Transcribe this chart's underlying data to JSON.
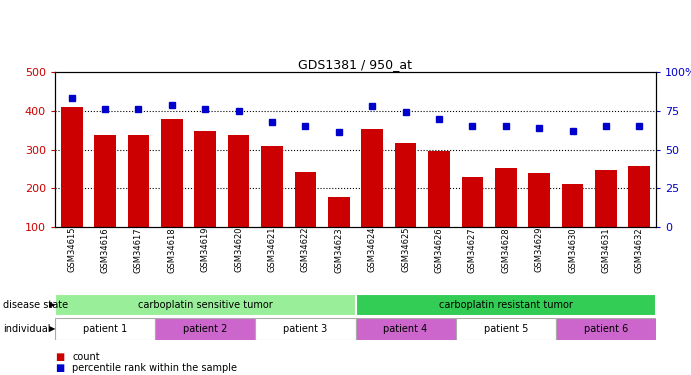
{
  "title": "GDS1381 / 950_at",
  "samples": [
    "GSM34615",
    "GSM34616",
    "GSM34617",
    "GSM34618",
    "GSM34619",
    "GSM34620",
    "GSM34621",
    "GSM34622",
    "GSM34623",
    "GSM34624",
    "GSM34625",
    "GSM34626",
    "GSM34627",
    "GSM34628",
    "GSM34629",
    "GSM34630",
    "GSM34631",
    "GSM34632"
  ],
  "counts": [
    410,
    338,
    338,
    380,
    347,
    338,
    308,
    242,
    178,
    353,
    318,
    295,
    228,
    253,
    240,
    210,
    247,
    257
  ],
  "percentiles": [
    83,
    76,
    76,
    79,
    76,
    75,
    68,
    65,
    61,
    78,
    74,
    70,
    65,
    65,
    64,
    62,
    65,
    65
  ],
  "ylim_left": [
    100,
    500
  ],
  "ylim_right": [
    0,
    100
  ],
  "yticks_left": [
    100,
    200,
    300,
    400,
    500
  ],
  "yticks_right": [
    0,
    25,
    50,
    75,
    100
  ],
  "bar_color": "#cc0000",
  "dot_color": "#0000cc",
  "disease_state_groups": [
    {
      "label": "carboplatin sensitive tumor",
      "start": 0,
      "end": 9,
      "color": "#99ee99"
    },
    {
      "label": "carboplatin resistant tumor",
      "start": 9,
      "end": 18,
      "color": "#33cc55"
    }
  ],
  "individual_groups": [
    {
      "label": "patient 1",
      "start": 0,
      "end": 3,
      "color": "#ffffff"
    },
    {
      "label": "patient 2",
      "start": 3,
      "end": 6,
      "color": "#cc66cc"
    },
    {
      "label": "patient 3",
      "start": 6,
      "end": 9,
      "color": "#ffffff"
    },
    {
      "label": "patient 4",
      "start": 9,
      "end": 12,
      "color": "#cc66cc"
    },
    {
      "label": "patient 5",
      "start": 12,
      "end": 15,
      "color": "#ffffff"
    },
    {
      "label": "patient 6",
      "start": 15,
      "end": 18,
      "color": "#cc66cc"
    }
  ],
  "disease_state_label": "disease state",
  "individual_label": "individual",
  "legend_count_label": "count",
  "legend_pct_label": "percentile rank within the sample",
  "left_yaxis_color": "#cc0000",
  "right_yaxis_color": "#0000cc",
  "bg_color": "#ffffff"
}
